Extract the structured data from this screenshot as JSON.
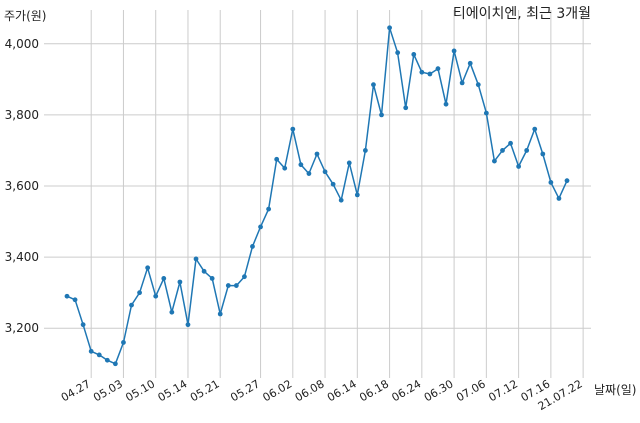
{
  "chart_data": {
    "type": "line",
    "title": "티에이치엔, 최근 3개월",
    "ylabel": "주가(원)",
    "xlabel": "날짜(일)",
    "ylim": [
      3060,
      4095
    ],
    "yticks": [
      3200,
      3400,
      3600,
      3800,
      4000
    ],
    "ytick_labels": [
      "3,200",
      "3,400",
      "3,600",
      "3,800",
      "4,000"
    ],
    "xtick_labels": [
      "04.27",
      "05.03",
      "05.10",
      "05.14",
      "05.21",
      "05.27",
      "06.02",
      "06.08",
      "06.14",
      "06.18",
      "06.24",
      "06.30",
      "07.06",
      "07.12",
      "07.16",
      "21.07.22"
    ],
    "xtick_indices": [
      3,
      7,
      11,
      15,
      19,
      24,
      28,
      32,
      36,
      40,
      44,
      48,
      52,
      56,
      60,
      64
    ],
    "grid": true,
    "series": [
      {
        "color": "#1f77b4",
        "values": [
          3290,
          3280,
          3210,
          3135,
          3125,
          3110,
          3100,
          3160,
          3265,
          3300,
          3370,
          3290,
          3340,
          3245,
          3330,
          3210,
          3395,
          3360,
          3340,
          3240,
          3320,
          3320,
          3345,
          3430,
          3485,
          3535,
          3675,
          3650,
          3760,
          3660,
          3635,
          3690,
          3640,
          3605,
          3560,
          3665,
          3575,
          3700,
          3885,
          3800,
          4045,
          3975,
          3820,
          3970,
          3920,
          3915,
          3930,
          3830,
          3980,
          3890,
          3945,
          3885,
          3805,
          3670,
          3700,
          3720,
          3655,
          3700,
          3760,
          3690,
          3610,
          3565,
          3615
        ]
      }
    ]
  }
}
